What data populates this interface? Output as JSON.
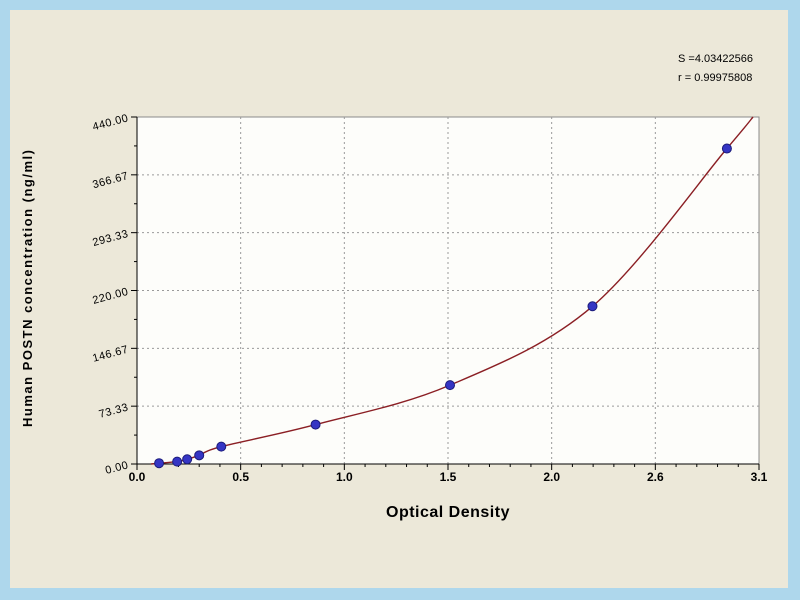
{
  "colors": {
    "frame": "#aed7ec",
    "panel": "#ece8d9",
    "plot_background": "#fdfdfa",
    "plot_border": "#8a8a8a",
    "grid": "#9a9a9a",
    "marker": "#3535c4",
    "marker_edge": "#1b1b7a",
    "curve": "#8b1f24",
    "text": "#000000"
  },
  "chart_data": {
    "type": "scatter",
    "title": "",
    "xlabel": "Optical Density",
    "ylabel": "Human POSTN concentration (ng/ml)",
    "xlim": [
      0,
      3.1
    ],
    "ylim": [
      0,
      440
    ],
    "grid": true,
    "legend": "none",
    "x_tick_labels": [
      "0.0",
      "0.5",
      "1.0",
      "1.5",
      "2.0",
      "2.6",
      "3.1"
    ],
    "y_tick_labels": [
      "0.00",
      "73.33",
      "146.67",
      "220.00",
      "293.33",
      "366.67",
      "440.00"
    ],
    "annotations": [
      "S =4.03422566",
      "r = 0.99975808"
    ],
    "points": [
      {
        "x": 0.11,
        "y": 1
      },
      {
        "x": 0.2,
        "y": 3
      },
      {
        "x": 0.25,
        "y": 6
      },
      {
        "x": 0.31,
        "y": 11
      },
      {
        "x": 0.42,
        "y": 22
      },
      {
        "x": 0.89,
        "y": 50
      },
      {
        "x": 1.56,
        "y": 100
      },
      {
        "x": 2.27,
        "y": 200
      },
      {
        "x": 2.94,
        "y": 400
      }
    ],
    "curve_start": {
      "x": 0.07,
      "y": 0
    },
    "curve_end": {
      "x": 3.07,
      "y": 440
    }
  }
}
